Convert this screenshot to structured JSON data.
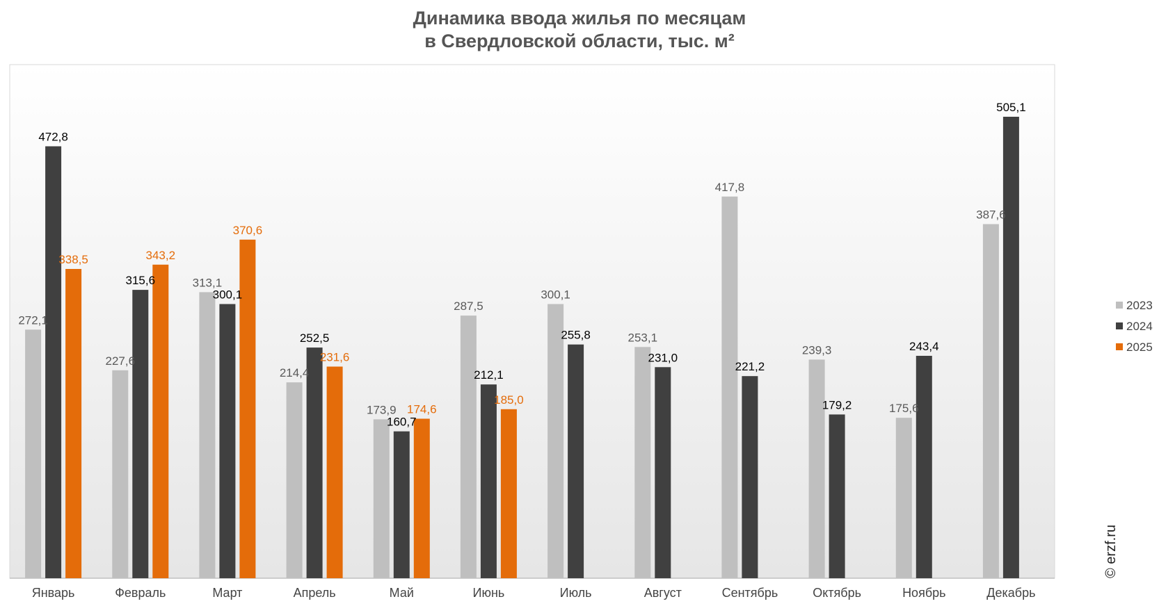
{
  "title_line1": "Динамика ввода жилья по месяцам",
  "title_line2": "в Свердловской области, тыс. м²",
  "watermark": "© erzf.ru",
  "chart_data": {
    "type": "bar",
    "title": "Динамика ввода жилья по месяцам в Свердловской области, тыс. м²",
    "categories": [
      "Январь",
      "Февраль",
      "Март",
      "Апрель",
      "Май",
      "Июнь",
      "Июль",
      "Август",
      "Сентябрь",
      "Октябрь",
      "Ноябрь",
      "Декабрь"
    ],
    "series": [
      {
        "name": "2023",
        "color": "#bfbfbf",
        "label_color": "#595959",
        "values": [
          272.1,
          227.6,
          313.1,
          214.4,
          173.9,
          287.5,
          300.1,
          253.1,
          417.8,
          239.3,
          175.6,
          387.6
        ]
      },
      {
        "name": "2024",
        "color": "#404040",
        "label_color": "#000000",
        "values": [
          472.8,
          315.6,
          300.1,
          252.5,
          160.7,
          212.1,
          255.8,
          231.0,
          221.2,
          179.2,
          243.4,
          505.1
        ]
      },
      {
        "name": "2025",
        "color": "#e46c0a",
        "label_color": "#e46c0a",
        "values": [
          338.5,
          343.2,
          370.6,
          231.6,
          174.6,
          185.0,
          null,
          null,
          null,
          null,
          null,
          null
        ]
      }
    ],
    "data_labels": [
      [
        "272,1",
        "227,6",
        "313,1",
        "214,4",
        "173,9",
        "287,5",
        "300,1",
        "253,1",
        "417,8",
        "239,3",
        "175,6",
        "387,6"
      ],
      [
        "472,8",
        "315,6",
        "300,1",
        "252,5",
        "160,7",
        "212,1",
        "255,8",
        "231,0",
        "221,2",
        "179,2",
        "243,4",
        "505,1"
      ],
      [
        "338,5",
        "343,2",
        "370,6",
        "231,6",
        "174,6",
        "185,0",
        "",
        "",
        "",
        "",
        "",
        ""
      ]
    ],
    "ylim": [
      0,
      560
    ],
    "grid": false,
    "legend_position": "right"
  }
}
